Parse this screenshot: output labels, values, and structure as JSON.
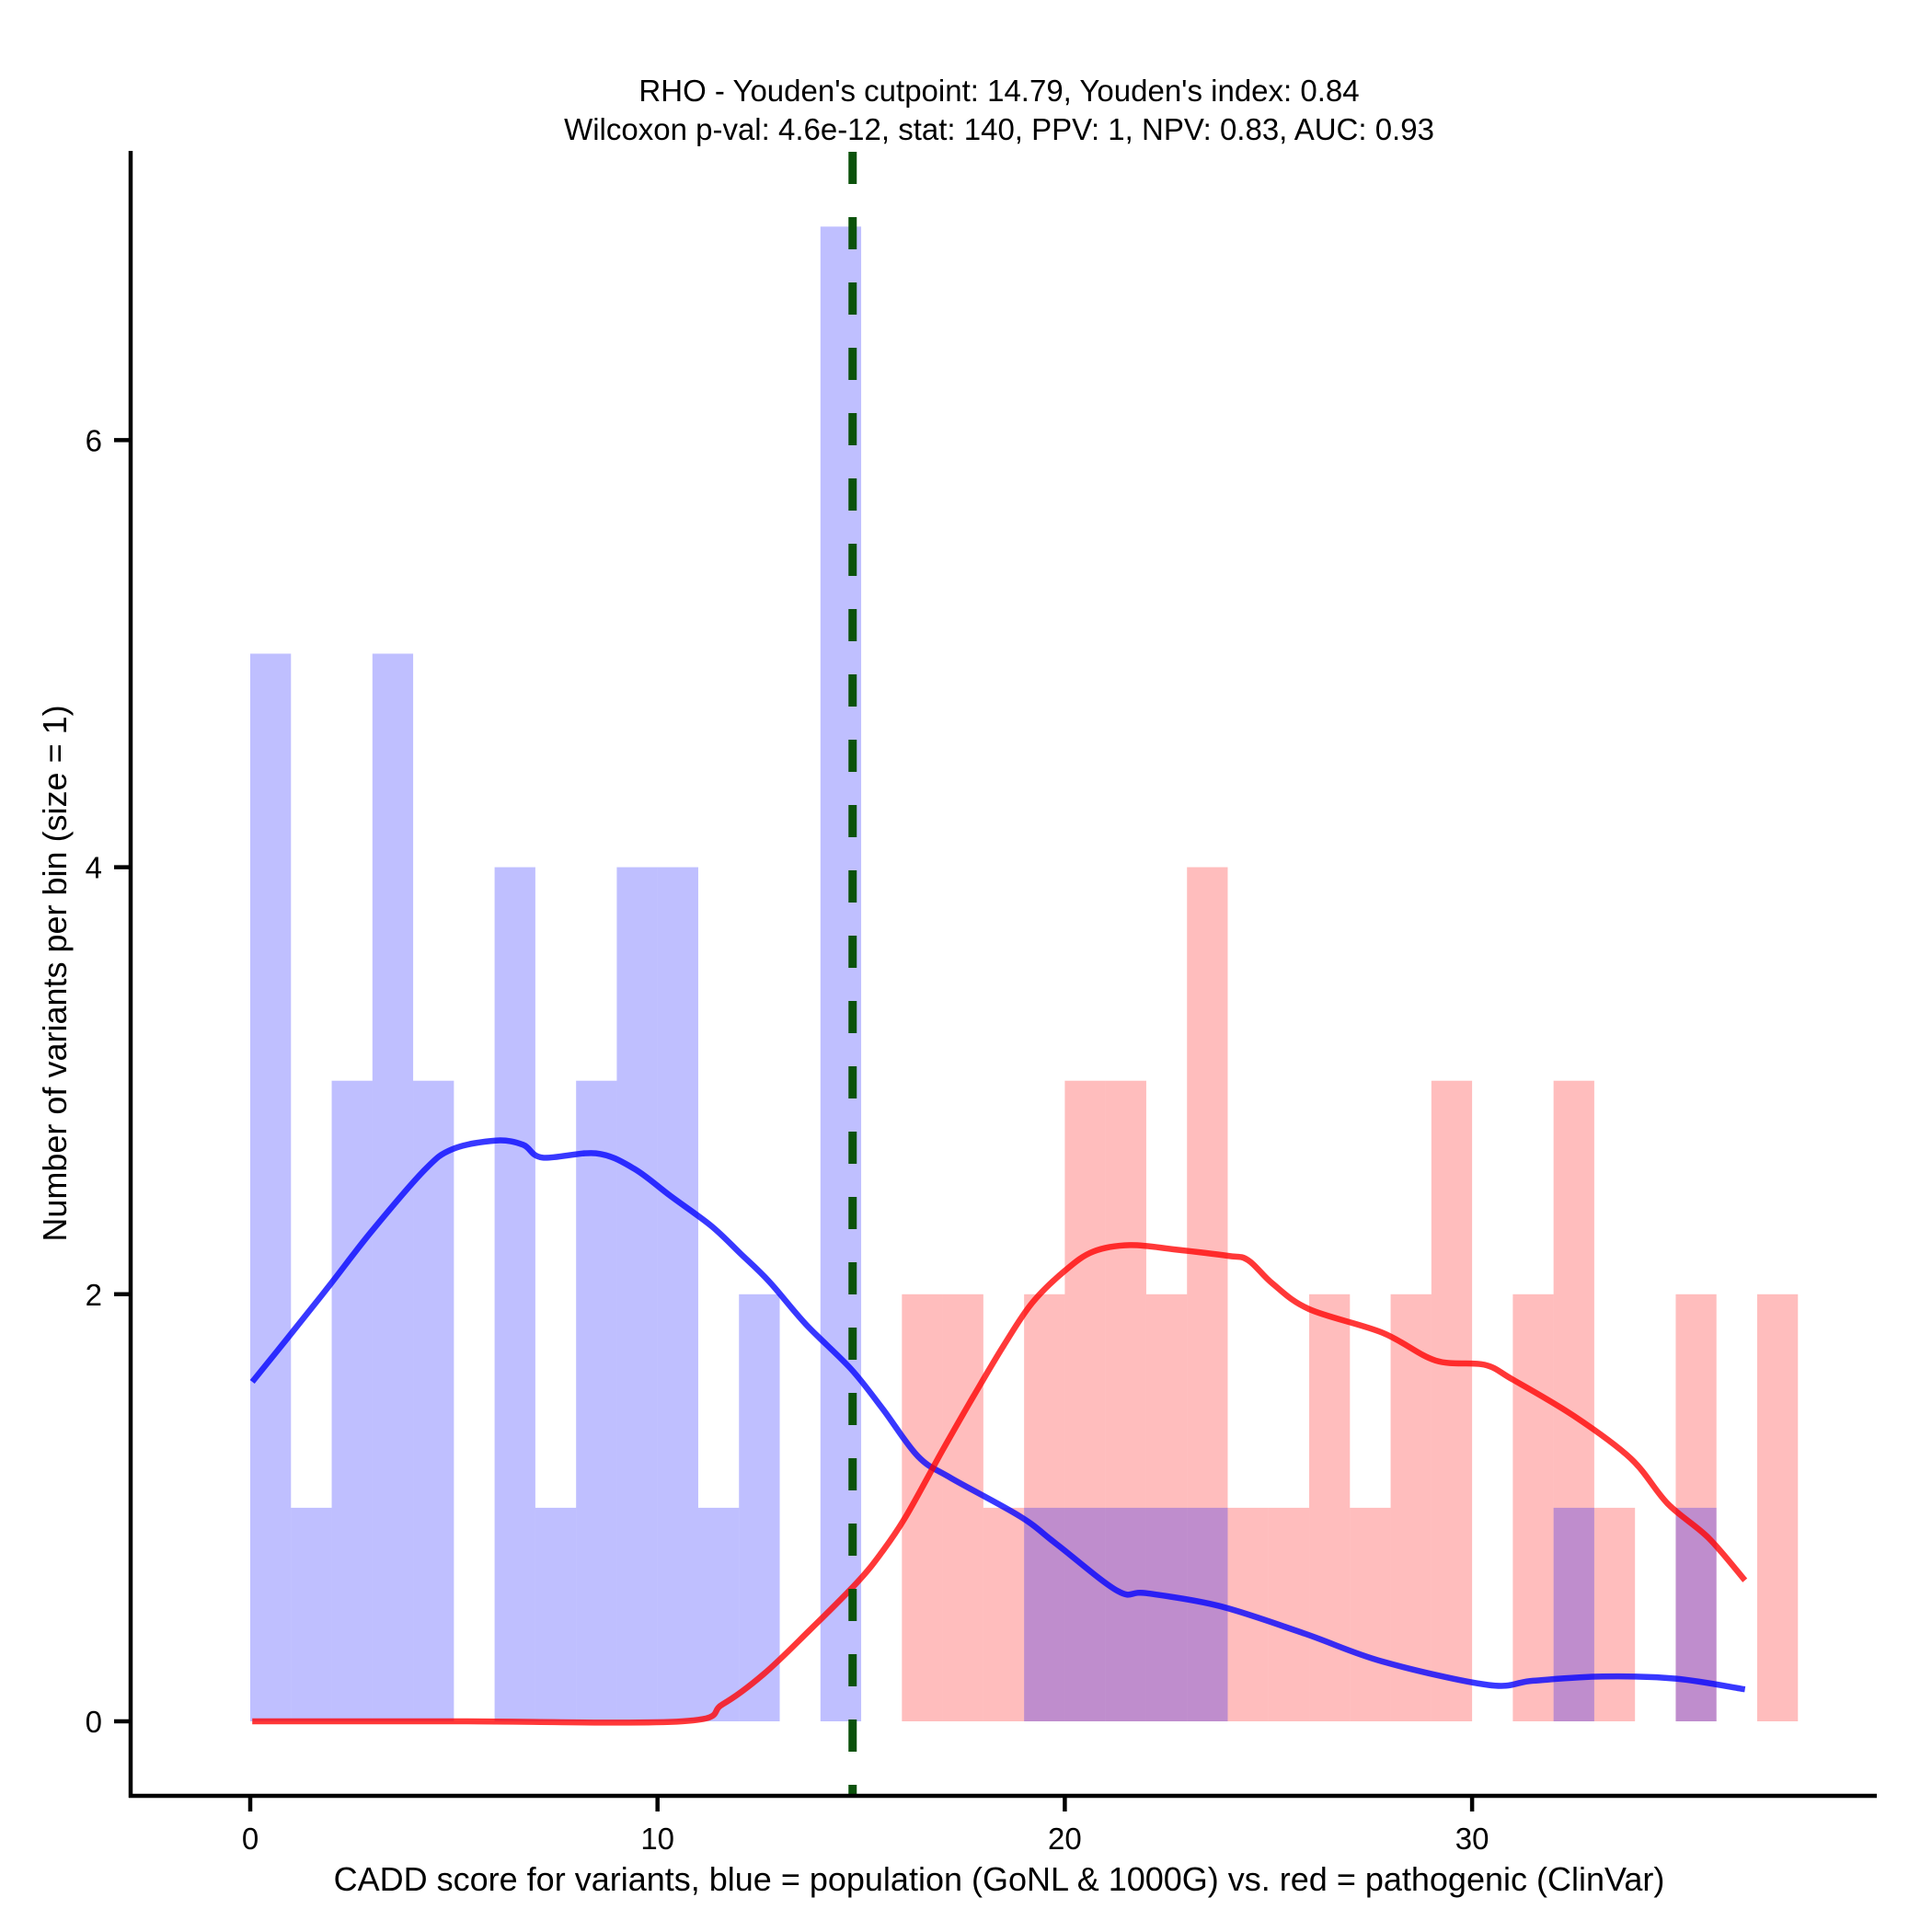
{
  "chart_data": {
    "type": "bar",
    "subtype": "overlaid histogram with density curves",
    "title": "RHO - Youden's cutpoint: 14.79, Youden's index: 0.84",
    "subtitle": "Wilcoxon p-val: 4.6e-12, stat: 140, PPV: 1, NPV: 0.83, AUC: 0.93",
    "xlabel": "CADD score for variants, blue = population (GoNL & 1000G) vs. red = pathogenic (ClinVar)",
    "ylabel": "Number of variants per bin (size = 1)",
    "xlim": [
      -3,
      40.4
    ],
    "ylim": [
      -0.35,
      7.5
    ],
    "x_ticks": [
      0,
      10,
      20,
      30
    ],
    "x_tick_labels": [
      "0",
      "10",
      "20",
      "30"
    ],
    "y_ticks": [
      0,
      2,
      4,
      6
    ],
    "y_tick_labels": [
      "0",
      "2",
      "4",
      "6"
    ],
    "grid": false,
    "bin_width": 1,
    "cutpoint": {
      "x": 14.79,
      "color": "#0b520b",
      "style": "dashed"
    },
    "series": [
      {
        "name": "population (GoNL & 1000G)",
        "color": "#0000ff",
        "bar_color": "#bfbffd",
        "bins": [
          {
            "start": 0,
            "count": 5
          },
          {
            "start": 1,
            "count": 1
          },
          {
            "start": 2,
            "count": 3
          },
          {
            "start": 3,
            "count": 5
          },
          {
            "start": 4,
            "count": 3
          },
          {
            "start": 5,
            "count": 0
          },
          {
            "start": 6,
            "count": 4
          },
          {
            "start": 7,
            "count": 1
          },
          {
            "start": 8,
            "count": 3
          },
          {
            "start": 9,
            "count": 4
          },
          {
            "start": 10,
            "count": 4
          },
          {
            "start": 11,
            "count": 1
          },
          {
            "start": 12,
            "count": 2
          },
          {
            "start": 13,
            "count": 0
          },
          {
            "start": 14,
            "count": 7
          },
          {
            "start": 19,
            "count": 1
          },
          {
            "start": 20,
            "count": 1
          },
          {
            "start": 21,
            "count": 1
          },
          {
            "start": 22,
            "count": 1
          },
          {
            "start": 23,
            "count": 1
          },
          {
            "start": 32,
            "count": 1
          },
          {
            "start": 35,
            "count": 1
          }
        ],
        "density_curve": [
          [
            0.05,
            1.59
          ],
          [
            0.94,
            1.8
          ],
          [
            1.94,
            2.04
          ],
          [
            2.96,
            2.29
          ],
          [
            4.27,
            2.58
          ],
          [
            4.97,
            2.68
          ],
          [
            6.03,
            2.72
          ],
          [
            6.7,
            2.7
          ],
          [
            7.18,
            2.64
          ],
          [
            8.49,
            2.66
          ],
          [
            9.41,
            2.59
          ],
          [
            10.32,
            2.46
          ],
          [
            11.32,
            2.32
          ],
          [
            12.04,
            2.19
          ],
          [
            12.74,
            2.06
          ],
          [
            13.64,
            1.86
          ],
          [
            14.75,
            1.65
          ],
          [
            15.54,
            1.46
          ],
          [
            16.4,
            1.24
          ],
          [
            17.2,
            1.14
          ],
          [
            18.9,
            0.96
          ],
          [
            19.8,
            0.83
          ],
          [
            21.3,
            0.61
          ],
          [
            22.0,
            0.6
          ],
          [
            23.8,
            0.54
          ],
          [
            25.9,
            0.41
          ],
          [
            27.8,
            0.28
          ],
          [
            30.4,
            0.17
          ],
          [
            31.5,
            0.19
          ],
          [
            33.2,
            0.21
          ],
          [
            35.0,
            0.2
          ],
          [
            36.7,
            0.15
          ]
        ]
      },
      {
        "name": "pathogenic (ClinVar)",
        "color": "#ff0000",
        "bar_color": "#fdbcbf",
        "bins": [
          {
            "start": 16,
            "count": 2
          },
          {
            "start": 17,
            "count": 2
          },
          {
            "start": 18,
            "count": 1
          },
          {
            "start": 19,
            "count": 2
          },
          {
            "start": 20,
            "count": 3
          },
          {
            "start": 21,
            "count": 3
          },
          {
            "start": 22,
            "count": 2
          },
          {
            "start": 23,
            "count": 4
          },
          {
            "start": 24,
            "count": 1
          },
          {
            "start": 25,
            "count": 1
          },
          {
            "start": 26,
            "count": 2
          },
          {
            "start": 27,
            "count": 1
          },
          {
            "start": 28,
            "count": 2
          },
          {
            "start": 29,
            "count": 3
          },
          {
            "start": 30,
            "count": 0
          },
          {
            "start": 31,
            "count": 2
          },
          {
            "start": 32,
            "count": 3
          },
          {
            "start": 33,
            "count": 1
          },
          {
            "start": 34,
            "count": 0
          },
          {
            "start": 35,
            "count": 2
          },
          {
            "start": 36,
            "count": 0
          },
          {
            "start": 37,
            "count": 2
          }
        ],
        "density_curve": [
          [
            0.05,
            0.0
          ],
          [
            5.0,
            0.0
          ],
          [
            10.6,
            0.0
          ],
          [
            11.6,
            0.08
          ],
          [
            12.6,
            0.22
          ],
          [
            13.7,
            0.42
          ],
          [
            14.9,
            0.65
          ],
          [
            15.5,
            0.79
          ],
          [
            16.1,
            0.96
          ],
          [
            17.0,
            1.27
          ],
          [
            17.75,
            1.52
          ],
          [
            18.5,
            1.76
          ],
          [
            19.2,
            1.96
          ],
          [
            20.0,
            2.11
          ],
          [
            20.7,
            2.2
          ],
          [
            21.6,
            2.23
          ],
          [
            22.7,
            2.21
          ],
          [
            24.0,
            2.18
          ],
          [
            24.5,
            2.16
          ],
          [
            25.1,
            2.05
          ],
          [
            26.0,
            1.93
          ],
          [
            27.8,
            1.82
          ],
          [
            29.1,
            1.69
          ],
          [
            30.3,
            1.67
          ],
          [
            31.0,
            1.6
          ],
          [
            32.5,
            1.43
          ],
          [
            33.9,
            1.23
          ],
          [
            34.8,
            1.02
          ],
          [
            35.8,
            0.86
          ],
          [
            36.7,
            0.66
          ]
        ]
      }
    ],
    "overlap_color": "#cc8fc1"
  }
}
